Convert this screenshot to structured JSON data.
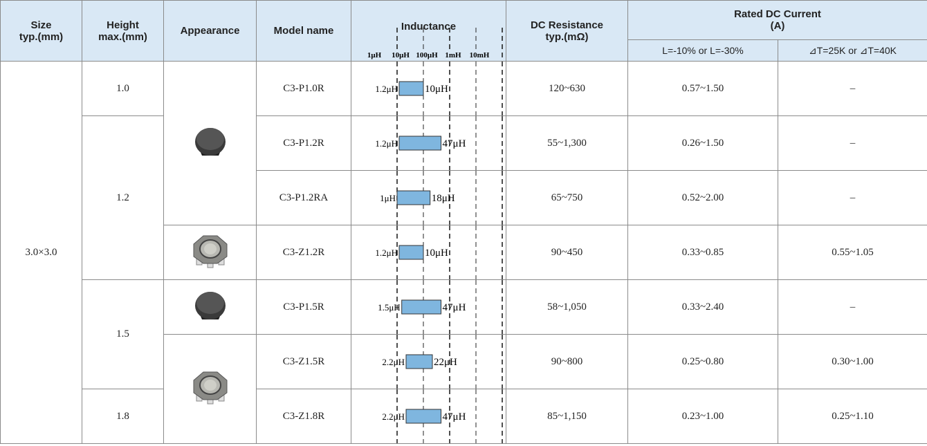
{
  "header": {
    "size": "Size\ntyp.(mm)",
    "height": "Height\nmax.(mm)",
    "appearance": "Appearance",
    "model": "Model name",
    "inductance": "Inductance",
    "dc_resistance": "DC Resistance\ntyp.(mΩ)",
    "rated_current": "Rated DC Current\n(A)",
    "current_l": "L=-10% or L=-30%",
    "current_t": "⊿T=25K or ⊿T=40K"
  },
  "inductance_scale": [
    {
      "value": 1,
      "label": "1μH"
    },
    {
      "value": 10,
      "label": "10μH"
    },
    {
      "value": 100,
      "label": "100μH"
    },
    {
      "value": 1000,
      "label": "1mH"
    },
    {
      "value": 10000,
      "label": "10mH"
    }
  ],
  "size": "3.0×3.0",
  "groups": [
    {
      "height": "1.0",
      "models": [
        {
          "model": "C3-P1.0R",
          "inductance": {
            "min": 1.2,
            "min_label": "1.2μH",
            "max": 10,
            "max_label": "10μH"
          },
          "dc_resistance": "120~630",
          "current_l": "0.57~1.50",
          "current_t": "–"
        }
      ]
    },
    {
      "height": "1.2",
      "models": [
        {
          "model": "C3-P1.2R",
          "inductance": {
            "min": 1.2,
            "min_label": "1.2μH",
            "max": 47,
            "max_label": "47μH"
          },
          "dc_resistance": "55~1,300",
          "current_l": "0.26~1.50",
          "current_t": "–"
        },
        {
          "model": "C3-P1.2RA",
          "inductance": {
            "min": 1,
            "min_label": "1μH",
            "max": 18,
            "max_label": "18μH"
          },
          "dc_resistance": "65~750",
          "current_l": "0.52~2.00",
          "current_t": "–"
        },
        {
          "model": "C3-Z1.2R",
          "inductance": {
            "min": 1.2,
            "min_label": "1.2μH",
            "max": 10,
            "max_label": "10μH"
          },
          "dc_resistance": "90~450",
          "current_l": "0.33~0.85",
          "current_t": "0.55~1.05"
        }
      ]
    },
    {
      "height": "1.5",
      "models": [
        {
          "model": "C3-P1.5R",
          "inductance": {
            "min": 1.5,
            "min_label": "1.5μH",
            "max": 47,
            "max_label": "47μH"
          },
          "dc_resistance": "58~1,050",
          "current_l": "0.33~2.40",
          "current_t": "–"
        },
        {
          "model": "C3-Z1.5R",
          "inductance": {
            "min": 2.2,
            "min_label": "2.2μH",
            "max": 22,
            "max_label": "22μH"
          },
          "dc_resistance": "90~800",
          "current_l": "0.25~0.80",
          "current_t": "0.30~1.00"
        }
      ]
    },
    {
      "height": "1.8",
      "models": [
        {
          "model": "C3-Z1.8R",
          "inductance": {
            "min": 2.2,
            "min_label": "2.2μH",
            "max": 47,
            "max_label": "47μH"
          },
          "dc_resistance": "85~1,150",
          "current_l": "0.23~1.00",
          "current_t": "0.25~1.10"
        }
      ]
    }
  ]
}
